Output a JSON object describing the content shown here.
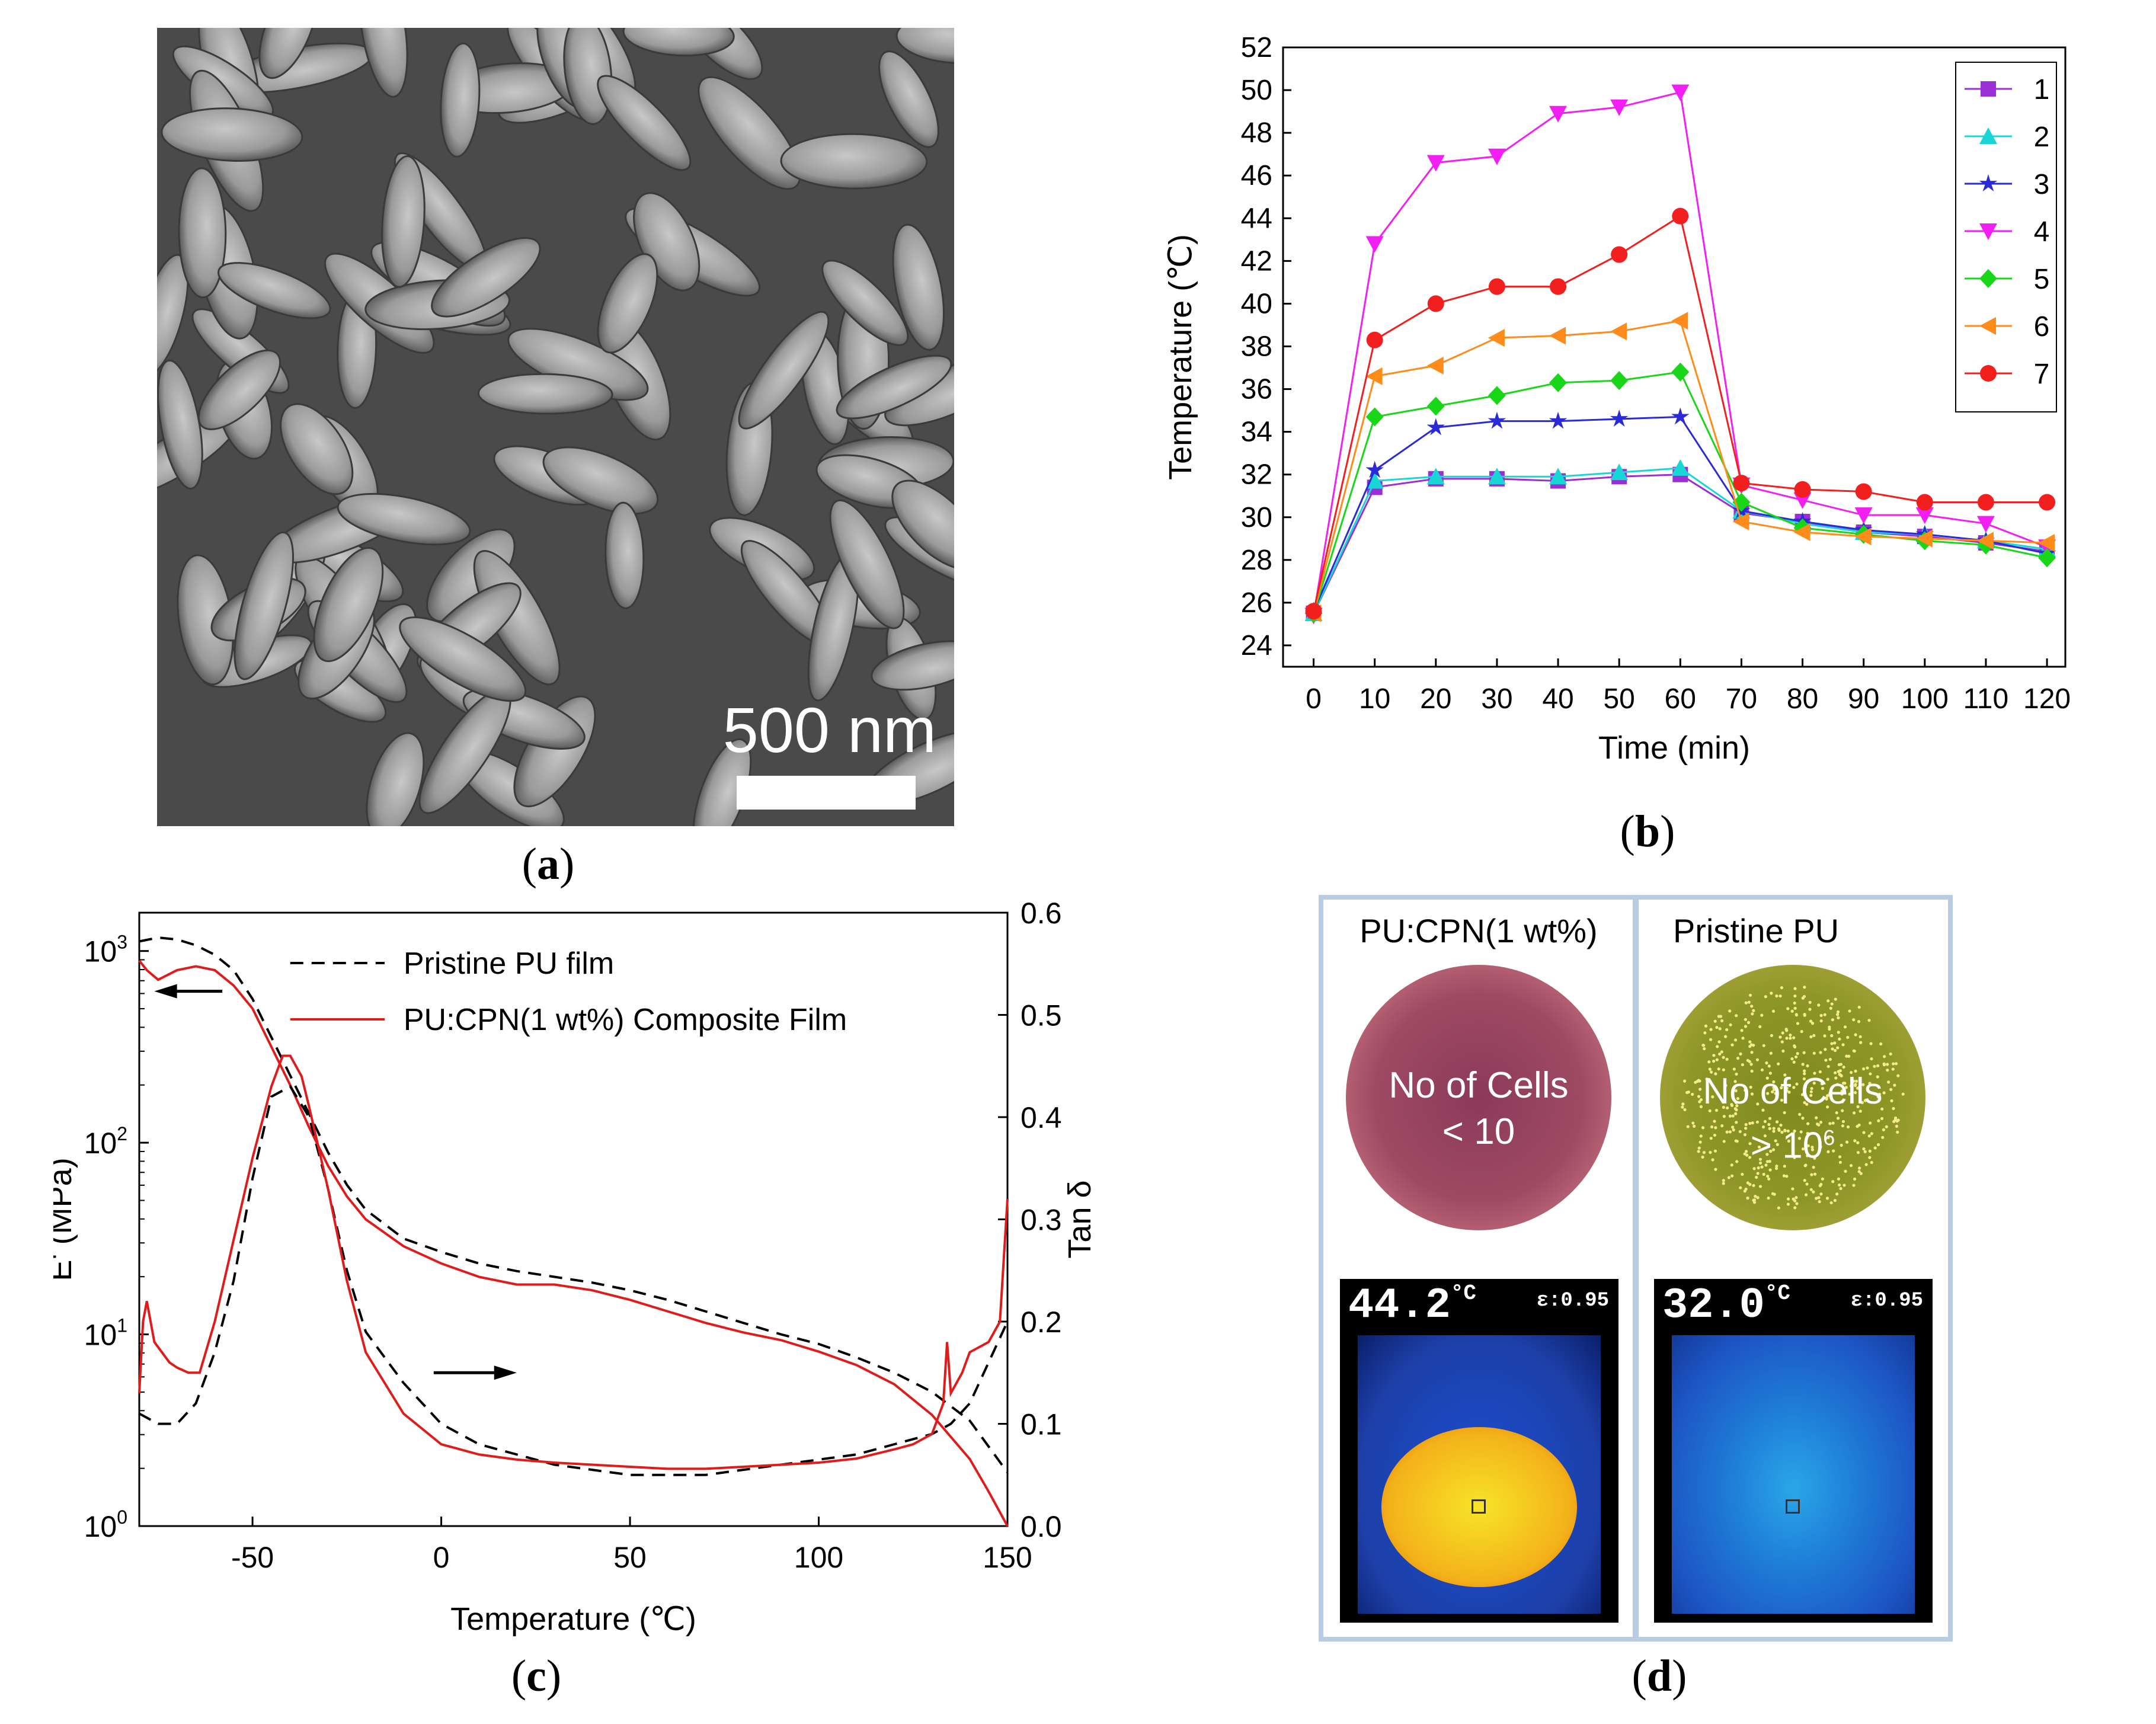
{
  "panel_a": {
    "scale_label": "500 nm",
    "caption_letter": "a"
  },
  "panel_b": {
    "caption_letter": "b"
  },
  "panel_c": {
    "caption_letter": "c"
  },
  "panel_d": {
    "caption_letter": "d",
    "left": {
      "title": "PU:CPN(1 wt%)",
      "cells_line1": "No of Cells",
      "cells_line2": "< 10",
      "temp": "44.2",
      "unit": "°C",
      "emissivity": "ε:0.95",
      "dish_color": "#b25a6e"
    },
    "right": {
      "title": "Pristine PU",
      "cells_line1": "No of Cells",
      "cells_line2": "> 10",
      "cells_exp": "6",
      "temp": "32.0",
      "unit": "°C",
      "emissivity": "ε:0.95",
      "dish_color": "#8c8f2e"
    }
  },
  "chart_data": [
    {
      "type": "line",
      "id": "b",
      "xlabel": "Time (min)",
      "ylabel": "Temperature (℃)",
      "xlim": [
        -5,
        123
      ],
      "ylim": [
        23,
        52
      ],
      "xticks": [
        0,
        10,
        20,
        30,
        40,
        50,
        60,
        70,
        80,
        90,
        100,
        110,
        120
      ],
      "yticks": [
        24,
        26,
        28,
        30,
        32,
        34,
        36,
        38,
        40,
        42,
        44,
        46,
        48,
        50,
        52
      ],
      "x": [
        0,
        10,
        20,
        30,
        40,
        50,
        60,
        70,
        80,
        90,
        100,
        110,
        120
      ],
      "series": [
        {
          "name": "1",
          "color": "#9a2fd6",
          "marker": "square",
          "values": [
            25.5,
            31.4,
            31.8,
            31.8,
            31.7,
            31.9,
            32.0,
            30.2,
            29.8,
            29.3,
            29.1,
            28.8,
            28.4
          ]
        },
        {
          "name": "2",
          "color": "#19d6d6",
          "marker": "triangle-up",
          "values": [
            25.5,
            31.7,
            31.9,
            31.9,
            31.9,
            32.1,
            32.3,
            30.3,
            29.7,
            29.3,
            29.2,
            28.9,
            28.5
          ]
        },
        {
          "name": "3",
          "color": "#2a2ad6",
          "marker": "star",
          "values": [
            25.6,
            32.2,
            34.2,
            34.5,
            34.5,
            34.6,
            34.7,
            30.3,
            29.8,
            29.4,
            29.2,
            28.9,
            28.3
          ]
        },
        {
          "name": "4",
          "color": "#f21ff2",
          "marker": "triangle-down",
          "values": [
            25.4,
            42.8,
            46.6,
            46.9,
            48.9,
            49.2,
            49.9,
            31.5,
            30.8,
            30.1,
            30.1,
            29.7,
            28.6
          ]
        },
        {
          "name": "5",
          "color": "#19d619",
          "marker": "diamond",
          "values": [
            25.5,
            34.7,
            35.2,
            35.7,
            36.3,
            36.4,
            36.8,
            30.7,
            29.5,
            29.2,
            28.9,
            28.7,
            28.1
          ]
        },
        {
          "name": "6",
          "color": "#ff8c1a",
          "marker": "triangle-left",
          "values": [
            25.5,
            36.6,
            37.1,
            38.4,
            38.5,
            38.7,
            39.2,
            29.8,
            29.3,
            29.1,
            29.0,
            28.9,
            28.8
          ]
        },
        {
          "name": "7",
          "color": "#f21f1f",
          "marker": "circle",
          "values": [
            25.6,
            38.3,
            40.0,
            40.8,
            40.8,
            42.3,
            44.1,
            31.6,
            31.3,
            31.2,
            30.7,
            30.7,
            30.7
          ]
        }
      ],
      "legend": "top-right"
    },
    {
      "type": "line",
      "id": "c",
      "xlabel": "Temperature (℃)",
      "ylabel_left": "E' (MPa)",
      "ylabel_right": "Tan δ",
      "xlim": [
        -80,
        150
      ],
      "ylim_left_log10": [
        0,
        3.2
      ],
      "ylim_right": [
        0.0,
        0.6
      ],
      "xticks": [
        -50,
        0,
        50,
        100,
        150
      ],
      "yticks_left": [
        {
          "base": "10",
          "exp": "0",
          "v": 0
        },
        {
          "base": "10",
          "exp": "1",
          "v": 1
        },
        {
          "base": "10",
          "exp": "2",
          "v": 2
        },
        {
          "base": "10",
          "exp": "3",
          "v": 3
        }
      ],
      "yticks_right": [
        "0.0",
        "0.1",
        "0.2",
        "0.3",
        "0.4",
        "0.5",
        "0.6"
      ],
      "legend": [
        {
          "label": "Pristine PU film",
          "style": "dashed",
          "color": "#000000"
        },
        {
          "label": "PU:CPN(1 wt%) Composite Film",
          "style": "solid",
          "color": "#e01b1b"
        }
      ],
      "series": [
        {
          "name": "Pristine PU film E'",
          "axis": "left",
          "style": "dashed",
          "color": "#000000",
          "x": [
            -80,
            -75,
            -70,
            -65,
            -60,
            -55,
            -50,
            -45,
            -40,
            -35,
            -30,
            -25,
            -20,
            -10,
            0,
            10,
            20,
            30,
            40,
            50,
            60,
            70,
            80,
            90,
            100,
            110,
            120,
            130,
            140,
            150
          ],
          "values": [
            3.05,
            3.07,
            3.06,
            3.03,
            2.98,
            2.9,
            2.75,
            2.55,
            2.35,
            2.15,
            1.95,
            1.78,
            1.65,
            1.5,
            1.43,
            1.37,
            1.33,
            1.3,
            1.27,
            1.23,
            1.18,
            1.12,
            1.06,
            1.0,
            0.95,
            0.88,
            0.8,
            0.7,
            0.55,
            0.28
          ]
        },
        {
          "name": "Composite E'",
          "axis": "left",
          "style": "solid",
          "color": "#e01b1b",
          "x": [
            -80,
            -78,
            -75,
            -70,
            -65,
            -60,
            -55,
            -50,
            -45,
            -40,
            -35,
            -30,
            -25,
            -20,
            -10,
            0,
            10,
            20,
            30,
            40,
            50,
            60,
            70,
            80,
            90,
            100,
            110,
            120,
            130,
            140,
            145,
            150
          ],
          "values": [
            2.95,
            2.9,
            2.85,
            2.9,
            2.92,
            2.9,
            2.82,
            2.7,
            2.5,
            2.3,
            2.08,
            1.88,
            1.72,
            1.6,
            1.46,
            1.37,
            1.3,
            1.26,
            1.26,
            1.23,
            1.18,
            1.12,
            1.06,
            1.01,
            0.97,
            0.91,
            0.84,
            0.74,
            0.58,
            0.35,
            0.18,
            0.0
          ]
        },
        {
          "name": "Pristine PU film Tan δ",
          "axis": "right",
          "style": "dashed",
          "color": "#000000",
          "x": [
            -80,
            -75,
            -70,
            -65,
            -60,
            -55,
            -50,
            -45,
            -40,
            -35,
            -30,
            -25,
            -20,
            -10,
            0,
            10,
            20,
            30,
            40,
            50,
            60,
            70,
            80,
            90,
            100,
            110,
            120,
            130,
            135,
            140,
            145,
            150
          ],
          "values": [
            0.11,
            0.1,
            0.1,
            0.12,
            0.17,
            0.24,
            0.34,
            0.42,
            0.43,
            0.4,
            0.33,
            0.25,
            0.19,
            0.14,
            0.1,
            0.08,
            0.07,
            0.06,
            0.055,
            0.05,
            0.05,
            0.05,
            0.055,
            0.06,
            0.065,
            0.07,
            0.08,
            0.09,
            0.1,
            0.12,
            0.16,
            0.2
          ]
        },
        {
          "name": "Composite Tan δ",
          "axis": "right",
          "style": "solid",
          "color": "#e01b1b",
          "x": [
            -80,
            -79,
            -78,
            -76,
            -74,
            -72,
            -70,
            -67,
            -64,
            -60,
            -55,
            -50,
            -45,
            -42,
            -40,
            -37,
            -35,
            -30,
            -25,
            -20,
            -10,
            0,
            10,
            20,
            30,
            40,
            50,
            60,
            70,
            80,
            90,
            100,
            110,
            120,
            125,
            130,
            133,
            134,
            135,
            138,
            140,
            145,
            148,
            150
          ],
          "values": [
            0.13,
            0.2,
            0.22,
            0.18,
            0.17,
            0.16,
            0.155,
            0.15,
            0.15,
            0.2,
            0.28,
            0.36,
            0.43,
            0.46,
            0.46,
            0.44,
            0.41,
            0.33,
            0.24,
            0.17,
            0.11,
            0.08,
            0.07,
            0.065,
            0.062,
            0.06,
            0.058,
            0.056,
            0.056,
            0.058,
            0.06,
            0.062,
            0.066,
            0.075,
            0.08,
            0.09,
            0.12,
            0.18,
            0.13,
            0.15,
            0.17,
            0.18,
            0.2,
            0.32
          ]
        }
      ]
    }
  ]
}
